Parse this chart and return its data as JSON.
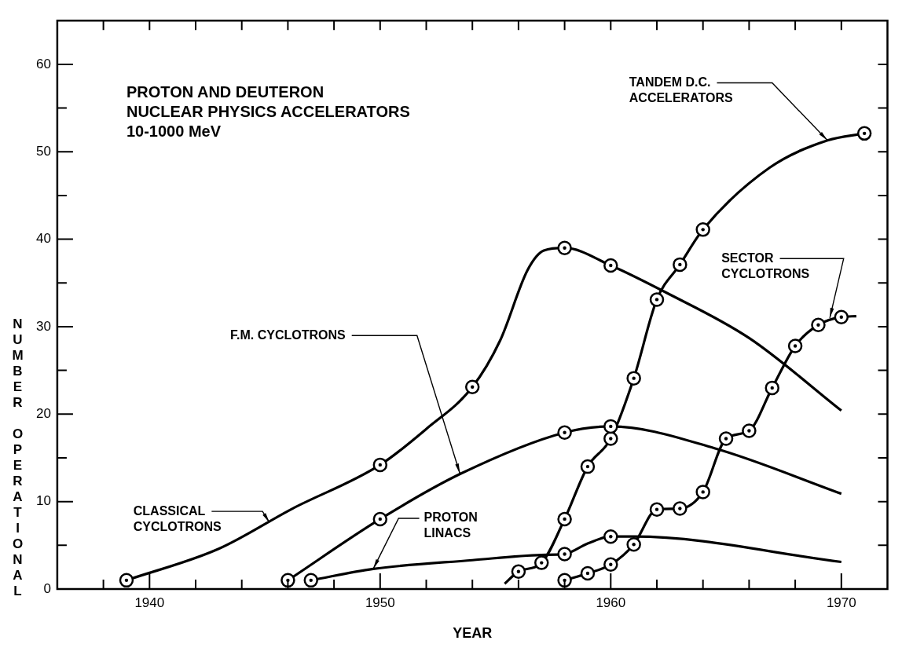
{
  "chart_data": {
    "type": "line",
    "title": "PROTON AND DEUTERON\nNUCLEAR PHYSICS ACCELERATORS\n10-1000 MeV",
    "xlabel": "YEAR",
    "ylabel": "NUMBER OPERATIONAL",
    "xlim": [
      1936,
      1972
    ],
    "ylim": [
      0,
      65
    ],
    "xticks": [
      {
        "value": 1938,
        "label": null
      },
      1940,
      {
        "value": 1942,
        "label": null
      },
      {
        "value": 1944,
        "label": null
      },
      {
        "value": 1946,
        "label": null
      },
      {
        "value": 1948,
        "label": null
      },
      1950,
      {
        "value": 1952,
        "label": null
      },
      {
        "value": 1954,
        "label": null
      },
      {
        "value": 1956,
        "label": null
      },
      {
        "value": 1958,
        "label": null
      },
      1960,
      {
        "value": 1962,
        "label": null
      },
      {
        "value": 1964,
        "label": null
      },
      {
        "value": 1966,
        "label": null
      },
      {
        "value": 1968,
        "label": null
      },
      1970
    ],
    "yticks": [
      0,
      {
        "value": 5,
        "label": null
      },
      10,
      {
        "value": 15,
        "label": null
      },
      20,
      {
        "value": 25,
        "label": null
      },
      30,
      {
        "value": 35,
        "label": null
      },
      40,
      {
        "value": 45,
        "label": null
      },
      50,
      {
        "value": 55,
        "label": null
      },
      60
    ],
    "series": [
      {
        "name": "CLASSICAL CYCLOTRONS",
        "type": "line",
        "marker": "none",
        "color": "#000000",
        "x": [
          1939,
          1943,
          1946.2,
          1950,
          1952,
          1954,
          1955.2,
          1956.4,
          1957.1,
          1958,
          1960,
          1962.4,
          1966,
          1970
        ],
        "values": [
          1,
          4.6,
          9.2,
          14.2,
          18.3,
          23.1,
          28.4,
          36.5,
          38.7,
          39,
          37,
          33.9,
          28.7,
          20.4
        ]
      },
      {
        "type": "scatter",
        "marker": "circle",
        "color": "#000000",
        "x": [
          1939,
          1950,
          1954,
          1958,
          1960
        ],
        "values": [
          1,
          14.2,
          23.1,
          39,
          37
        ]
      },
      {
        "name": "F.M. CYCLOTRONS",
        "type": "line",
        "marker": "none",
        "color": "#000000",
        "x": [
          1946,
          1950,
          1953.5,
          1958,
          1960,
          1964.5,
          1970
        ],
        "values": [
          1,
          8,
          13.2,
          17.9,
          18.6,
          16.1,
          10.9
        ]
      },
      {
        "type": "scatter",
        "marker": "circle",
        "color": "#000000",
        "x": [
          1946,
          1950,
          1958,
          1960
        ],
        "values": [
          1,
          8,
          17.9,
          18.6
        ]
      },
      {
        "name": "PROTON LINACS",
        "type": "line",
        "marker": "none",
        "color": "#000000",
        "x": [
          1947,
          1949.7,
          1954,
          1957,
          1958,
          1959,
          1960,
          1961,
          1970
        ],
        "values": [
          1,
          2.3,
          3.3,
          3.9,
          4,
          5.2,
          6,
          6,
          3.1
        ]
      },
      {
        "type": "scatter",
        "marker": "circle",
        "color": "#000000",
        "x": [
          1947,
          1958,
          1960
        ],
        "values": [
          1,
          4,
          6
        ]
      },
      {
        "name": "TANDEM D.C. ACCELERATORS",
        "type": "line",
        "marker": "none",
        "color": "#000000",
        "x": [
          1955.4,
          1956,
          1957,
          1958,
          1959,
          1960,
          1961,
          1962,
          1963,
          1964,
          1966.9,
          1969.4,
          1971
        ],
        "values": [
          0.6,
          2,
          3,
          8,
          14,
          17.2,
          24.1,
          33.1,
          37.1,
          41.1,
          48.2,
          51.3,
          52.1
        ]
      },
      {
        "type": "scatter",
        "marker": "circle",
        "color": "#000000",
        "x": [
          1956,
          1957,
          1958,
          1959,
          1960,
          1961,
          1962,
          1963,
          1964,
          1971
        ],
        "values": [
          2,
          3,
          8,
          14,
          17.2,
          24.1,
          33.1,
          37.1,
          41.1,
          52.1
        ]
      },
      {
        "name": "SECTOR CYCLOTRONS",
        "type": "line",
        "marker": "none",
        "color": "#000000",
        "x": [
          1958,
          1959,
          1960,
          1961,
          1962,
          1963,
          1964,
          1965,
          1966,
          1967,
          1968,
          1969,
          1970,
          1970.65
        ],
        "values": [
          1,
          1.8,
          2.8,
          5.1,
          9.1,
          9.2,
          11.1,
          17.2,
          18.1,
          23,
          27.8,
          30.2,
          31.1,
          31.2
        ]
      },
      {
        "type": "scatter",
        "marker": "circle",
        "color": "#000000",
        "x": [
          1958,
          1959,
          1960,
          1961,
          1962,
          1963,
          1964,
          1965,
          1966,
          1967,
          1968,
          1969,
          1970
        ],
        "values": [
          1,
          1.8,
          2.8,
          5.1,
          9.1,
          9.2,
          11.1,
          17.2,
          18.1,
          23,
          27.8,
          30.2,
          31.1
        ]
      }
    ]
  }
}
